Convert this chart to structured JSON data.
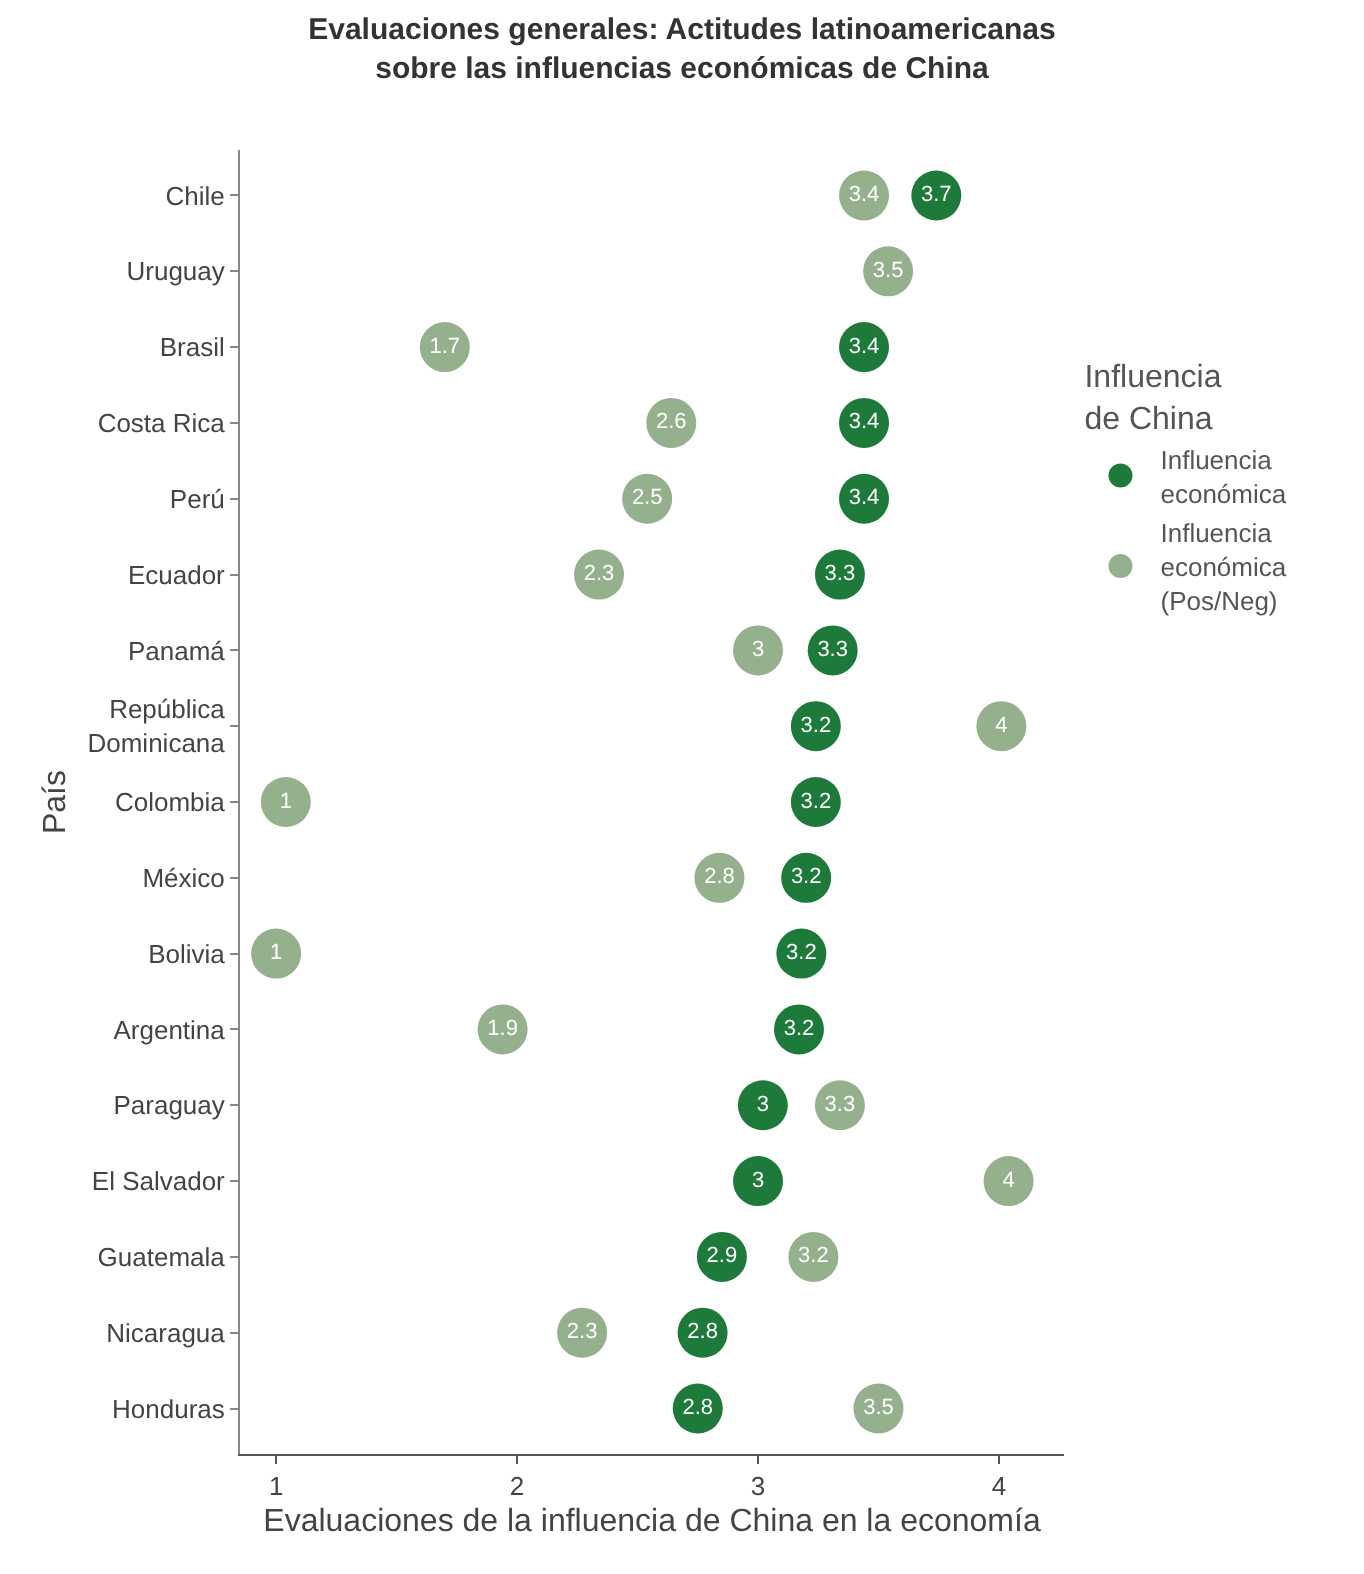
{
  "chart_data": {
    "type": "scatter",
    "title": "Evaluaciones generales: Actitudes latinoamericanas sobre las influencias económicas de China",
    "xlabel": "Evaluaciones de la influencia de China en la economía",
    "ylabel": "País",
    "legend_title": "Influencia de China",
    "categories": [
      "Chile",
      "Uruguay",
      "Brasil",
      "Costa Rica",
      "Perú",
      "Ecuador",
      "Panamá",
      "República Dominicana",
      "Colombia",
      "México",
      "Bolivia",
      "Argentina",
      "Paraguay",
      "El Salvador",
      "Guatemala",
      "Nicaragua",
      "Honduras"
    ],
    "series": [
      {
        "name": "Influencia económica",
        "color": "#1e7a3a",
        "values": [
          3.74,
          null,
          3.44,
          3.44,
          3.44,
          3.34,
          3.31,
          3.24,
          3.24,
          3.2,
          3.18,
          3.17,
          3.02,
          3.0,
          2.85,
          2.77,
          2.75
        ],
        "value_labels": [
          "3.7",
          null,
          "3.4",
          "3.4",
          "3.4",
          "3.3",
          "3.3",
          "3.2",
          "3.2",
          "3.2",
          "3.2",
          "3.2",
          "3",
          "3",
          "2.9",
          "2.8",
          "2.8"
        ]
      },
      {
        "name": "Influencia económica (Pos/Neg)",
        "color": "#94b08c",
        "values": [
          3.44,
          3.54,
          1.7,
          2.64,
          2.54,
          2.34,
          3.0,
          4.01,
          1.04,
          2.84,
          1.0,
          1.94,
          3.34,
          4.04,
          3.23,
          2.27,
          3.5
        ],
        "value_labels": [
          "3.4",
          "3.5",
          "1.7",
          "2.6",
          "2.5",
          "2.3",
          "3",
          "4",
          "1",
          "2.8",
          "1",
          "1.9",
          "3.3",
          "4",
          "3.2",
          "2.3",
          "3.5"
        ]
      }
    ],
    "xlim": [
      0.85,
      4.27
    ],
    "xticks": [
      1,
      2,
      3,
      4
    ],
    "orientation": "horizontal",
    "legend": "right",
    "marker": "circle"
  }
}
